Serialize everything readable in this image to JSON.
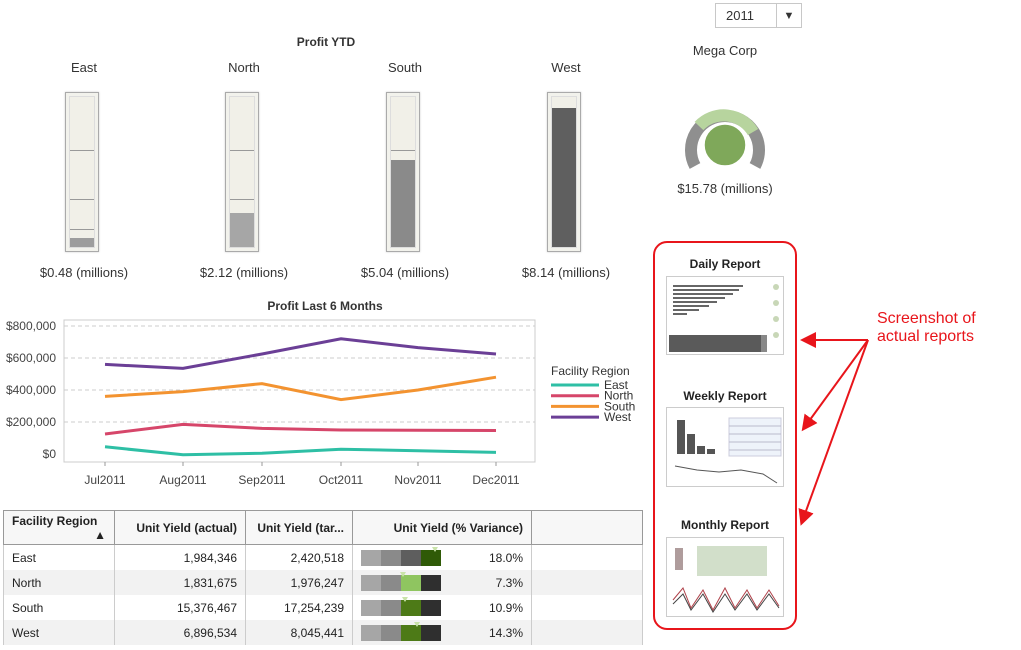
{
  "year_selector": {
    "value": "2011"
  },
  "profit_ytd": {
    "title": "Profit YTD",
    "regions": [
      {
        "name": "East",
        "value_label": "$0.48 (millions)",
        "fill": 0.06,
        "color": "#9d9d9d"
      },
      {
        "name": "North",
        "value_label": "$2.12 (millions)",
        "fill": 0.23,
        "color": "#a6a6a6"
      },
      {
        "name": "South",
        "value_label": "$5.04 (millions)",
        "fill": 0.58,
        "color": "#8a8a8a"
      },
      {
        "name": "West",
        "value_label": "$8.14 (millions)",
        "fill": 0.93,
        "color": "#5f5f5f"
      }
    ]
  },
  "corp": {
    "name": "Mega Corp",
    "value_label": "$15.78 (millions)",
    "gauge_color": "#7fa85a"
  },
  "chart_data": {
    "type": "line",
    "title": "Profit Last 6 Months",
    "categories": [
      "Jul2011",
      "Aug2011",
      "Sep2011",
      "Oct2011",
      "Nov2011",
      "Dec2011"
    ],
    "y_ticks": [
      "$0",
      "$200,000",
      "$400,000",
      "$600,000",
      "$800,000"
    ],
    "ylim": [
      0,
      800000
    ],
    "legend_title": "Facility Region",
    "legend_position": "right",
    "series": [
      {
        "name": "East",
        "color": "#2ebfa5",
        "values": [
          45000,
          -5000,
          5000,
          30000,
          20000,
          10000
        ]
      },
      {
        "name": "North",
        "color": "#d6466a",
        "values": [
          125000,
          185000,
          160000,
          150000,
          148000,
          147000
        ]
      },
      {
        "name": "South",
        "color": "#f39330",
        "values": [
          360000,
          390000,
          440000,
          340000,
          400000,
          480000
        ]
      },
      {
        "name": "West",
        "color": "#6b3f96",
        "values": [
          560000,
          535000,
          625000,
          720000,
          665000,
          625000
        ]
      }
    ]
  },
  "reports": [
    {
      "title": "Daily Report"
    },
    {
      "title": "Weekly Report"
    },
    {
      "title": "Monthly Report"
    }
  ],
  "callout": {
    "line1": "Screenshot of",
    "line2": "actual reports"
  },
  "table": {
    "headers": [
      "Facility Region",
      "Unit Yield (actual)",
      "Unit Yield (tar...",
      "Unit Yield (% Variance)"
    ],
    "sort_indicator": "▲",
    "rows": [
      {
        "region": "East",
        "actual": "1,984,346",
        "target": "2,420,518",
        "variance": "18.0%",
        "marker": 0.93
      },
      {
        "region": "North",
        "actual": "1,831,675",
        "target": "1,976,247",
        "variance": "7.3%",
        "marker": 0.52
      },
      {
        "region": "South",
        "actual": "15,376,467",
        "target": "17,254,239",
        "variance": "10.9%",
        "marker": 0.55
      },
      {
        "region": "West",
        "actual": "6,896,534",
        "target": "8,045,441",
        "variance": "14.3%",
        "marker": 0.7
      }
    ]
  }
}
